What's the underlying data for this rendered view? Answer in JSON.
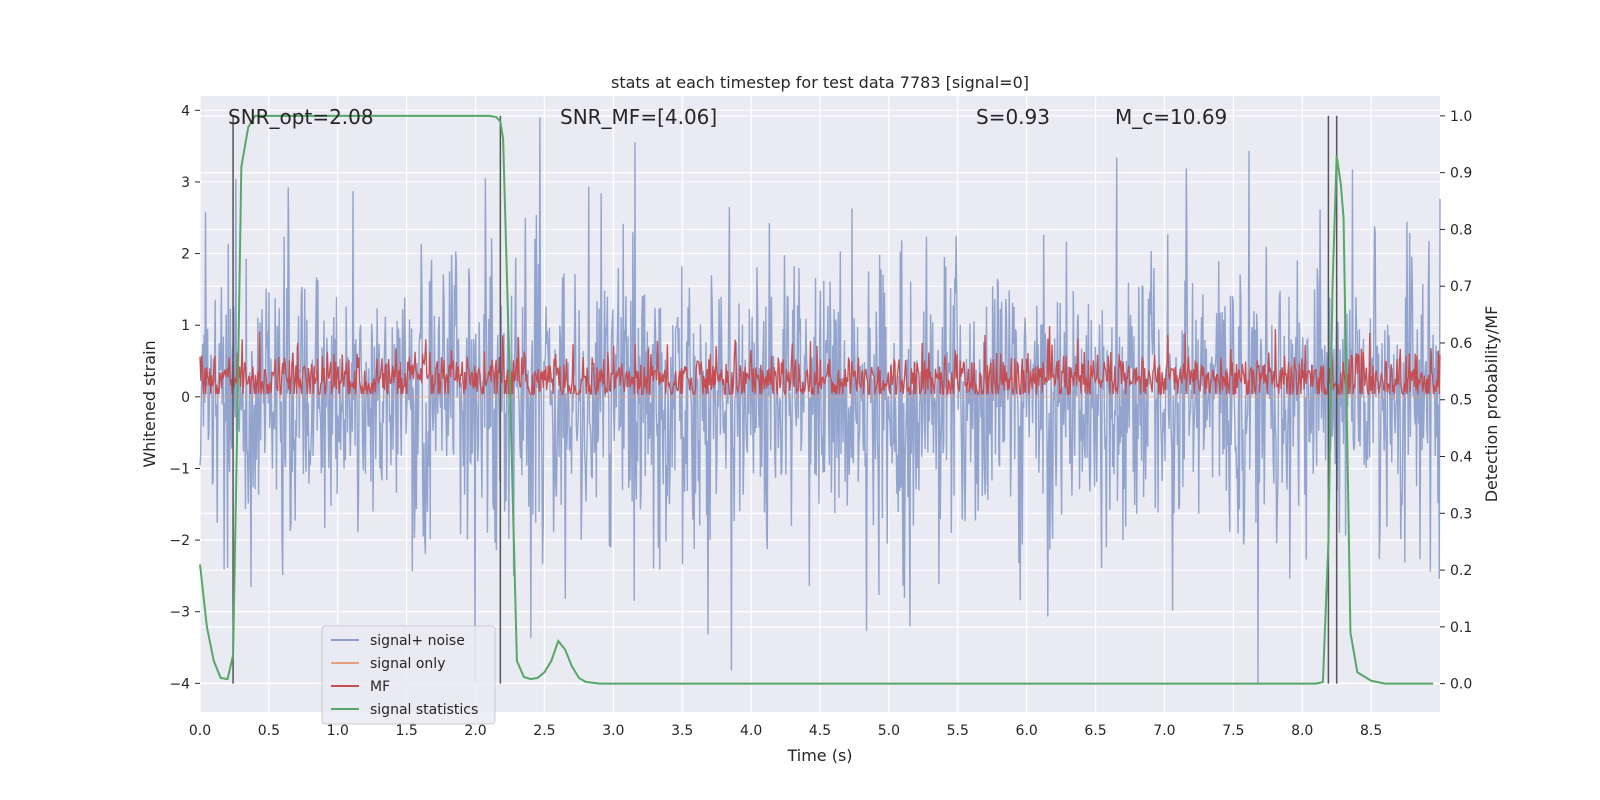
{
  "chart_data": {
    "type": "line",
    "title": "stats at each timestep for test data 7783 [signal=0]",
    "xlabel": "Time (s)",
    "ylabel": "Whitened strain",
    "y2label": "Detection probability/MF",
    "xlim": [
      0.0,
      9.0
    ],
    "ylim": [
      -4.4,
      4.2
    ],
    "y2lim": [
      -0.05,
      1.035
    ],
    "xticks": [
      "0.0",
      "0.5",
      "1.0",
      "1.5",
      "2.0",
      "2.5",
      "3.0",
      "3.5",
      "4.0",
      "4.5",
      "5.0",
      "5.5",
      "6.0",
      "6.5",
      "7.0",
      "7.5",
      "8.0",
      "8.5"
    ],
    "yticks": [
      "4",
      "3",
      "2",
      "1",
      "0",
      "−1",
      "−2",
      "−3",
      "−4"
    ],
    "y2ticks": [
      "1.0",
      "0.9",
      "0.8",
      "0.7",
      "0.6",
      "0.5",
      "0.4",
      "0.3",
      "0.2",
      "0.1",
      "0.0"
    ],
    "annotations": [
      {
        "text": "SNR_opt=2.08",
        "x": 0.2
      },
      {
        "text": "SNR_MF=[4.06]",
        "x": 2.6
      },
      {
        "text": "S=0.93",
        "x": 5.6
      },
      {
        "text": "M_c=10.69",
        "x": 6.6
      }
    ],
    "legend": {
      "location": "lower-left",
      "entries": [
        "signal+ noise",
        "signal only",
        "MF",
        "signal statistics"
      ]
    },
    "vertical_lines": [
      0.24,
      2.18,
      8.19,
      8.25
    ],
    "series": [
      {
        "name": "signal+ noise",
        "axis": "left",
        "description": "noisy whitened strain, roughly within -2.4 to 2.6, peaks to about 3.9",
        "color": "#8da0cb"
      },
      {
        "name": "signal only",
        "axis": "left",
        "description": "flat at zero",
        "color": "#e8a07f"
      },
      {
        "name": "MF",
        "axis": "left",
        "description": "matched filter trace mostly between 0.0 and 0.7",
        "color": "#c44e52"
      },
      {
        "name": "signal statistics",
        "axis": "right",
        "color": "#55a868",
        "x": [
          0.0,
          0.05,
          0.1,
          0.15,
          0.2,
          0.24,
          0.27,
          0.3,
          0.35,
          0.4,
          0.5,
          0.8,
          1.2,
          1.6,
          2.0,
          2.05,
          2.1,
          2.15,
          2.18,
          2.2,
          2.25,
          2.3,
          2.35,
          2.4,
          2.45,
          2.5,
          2.55,
          2.6,
          2.65,
          2.7,
          2.75,
          2.8,
          2.9,
          3.2,
          4.0,
          5.0,
          5.5,
          5.6,
          6.0,
          7.0,
          7.6,
          7.8,
          8.0,
          8.1,
          8.15,
          8.19,
          8.22,
          8.25,
          8.28,
          8.3,
          8.35,
          8.4,
          8.5,
          8.6,
          8.8,
          8.95
        ],
        "values": [
          0.21,
          0.1,
          0.04,
          0.01,
          0.008,
          0.05,
          0.45,
          0.91,
          0.98,
          1.0,
          1.0,
          1.0,
          1.0,
          1.0,
          1.0,
          1.0,
          1.0,
          0.998,
          0.99,
          0.96,
          0.52,
          0.04,
          0.012,
          0.008,
          0.01,
          0.02,
          0.04,
          0.075,
          0.06,
          0.03,
          0.01,
          0.003,
          0.0,
          0.0,
          0.0,
          0.0,
          0.0,
          0.0,
          0.0,
          0.0,
          0.0,
          0.0,
          0.0,
          0.0,
          0.003,
          0.25,
          0.7,
          0.93,
          0.88,
          0.82,
          0.09,
          0.02,
          0.005,
          0.0,
          0.0,
          0.0
        ]
      }
    ]
  }
}
